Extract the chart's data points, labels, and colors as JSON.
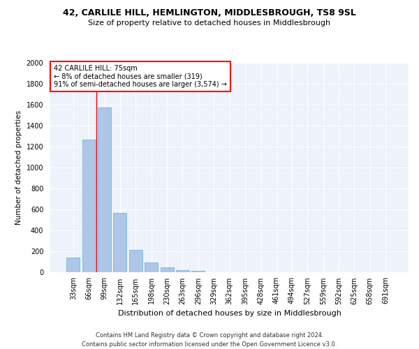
{
  "title": "42, CARLILE HILL, HEMLINGTON, MIDDLESBROUGH, TS8 9SL",
  "subtitle": "Size of property relative to detached houses in Middlesbrough",
  "xlabel": "Distribution of detached houses by size in Middlesbrough",
  "ylabel": "Number of detached properties",
  "categories": [
    "33sqm",
    "66sqm",
    "99sqm",
    "132sqm",
    "165sqm",
    "198sqm",
    "230sqm",
    "263sqm",
    "296sqm",
    "329sqm",
    "362sqm",
    "395sqm",
    "428sqm",
    "461sqm",
    "494sqm",
    "527sqm",
    "559sqm",
    "592sqm",
    "625sqm",
    "658sqm",
    "691sqm"
  ],
  "values": [
    140,
    1265,
    1575,
    570,
    215,
    95,
    50,
    22,
    12,
    0,
    0,
    0,
    0,
    0,
    0,
    0,
    0,
    0,
    0,
    0,
    0
  ],
  "bar_color": "#aec6e8",
  "bar_edge_color": "#6baed6",
  "annotation_text_line1": "42 CARLILE HILL: 75sqm",
  "annotation_text_line2": "← 8% of detached houses are smaller (319)",
  "annotation_text_line3": "91% of semi-detached houses are larger (3,574) →",
  "annotation_box_color": "white",
  "annotation_box_edge_color": "red",
  "vline_color": "red",
  "vline_x": 1.5,
  "ylim": [
    0,
    2000
  ],
  "yticks": [
    0,
    200,
    400,
    600,
    800,
    1000,
    1200,
    1400,
    1600,
    1800,
    2000
  ],
  "background_color": "#eef2fa",
  "footer_line1": "Contains HM Land Registry data © Crown copyright and database right 2024.",
  "footer_line2": "Contains public sector information licensed under the Open Government Licence v3.0.",
  "title_fontsize": 9,
  "subtitle_fontsize": 8,
  "xlabel_fontsize": 8,
  "ylabel_fontsize": 7.5,
  "tick_fontsize": 7,
  "footer_fontsize": 6,
  "annotation_fontsize": 7
}
